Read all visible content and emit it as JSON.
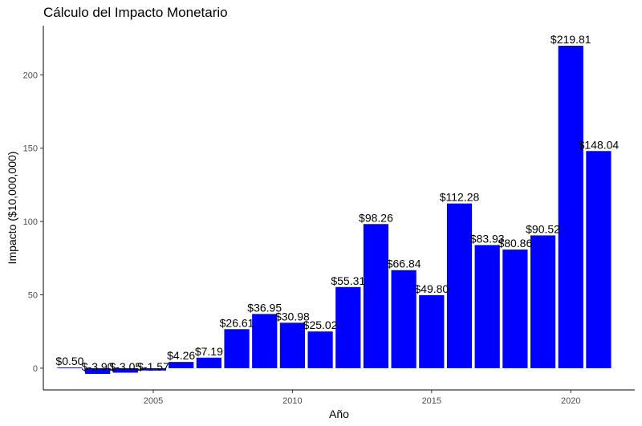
{
  "chart_data": {
    "type": "bar",
    "title": "Cálculo del Impacto Monetario",
    "xlabel": "Año",
    "ylabel": "Impacto ($10,000,000)",
    "x": [
      2002,
      2003,
      2004,
      2005,
      2006,
      2007,
      2008,
      2009,
      2010,
      2011,
      2012,
      2013,
      2014,
      2015,
      2016,
      2017,
      2018,
      2019,
      2020,
      2021
    ],
    "values": [
      0.5,
      -3.9,
      -3.05,
      -1.57,
      4.26,
      7.19,
      26.61,
      36.95,
      30.98,
      25.02,
      55.31,
      98.26,
      66.84,
      49.8,
      112.28,
      83.93,
      80.86,
      90.52,
      219.81,
      148.04
    ],
    "labels": [
      "$0.50",
      "$-3.90",
      "$-3.05",
      "$-1.57",
      "$4.26",
      "$7.19",
      "$26.61",
      "$36.95",
      "$30.98",
      "$25.02",
      "$55.31",
      "$98.26",
      "$66.84",
      "$49.80",
      "$112.28",
      "$83.93",
      "$80.86",
      "$90.52",
      "$219.81",
      "$148.04"
    ],
    "xticks": [
      2005,
      2010,
      2015,
      2020
    ],
    "yticks": [
      0,
      50,
      100,
      150,
      200
    ],
    "xlim": [
      2001.05,
      2022.3
    ],
    "ylim": [
      -14.8,
      233.5
    ],
    "bar_color": "#0000ff",
    "grid": false
  }
}
